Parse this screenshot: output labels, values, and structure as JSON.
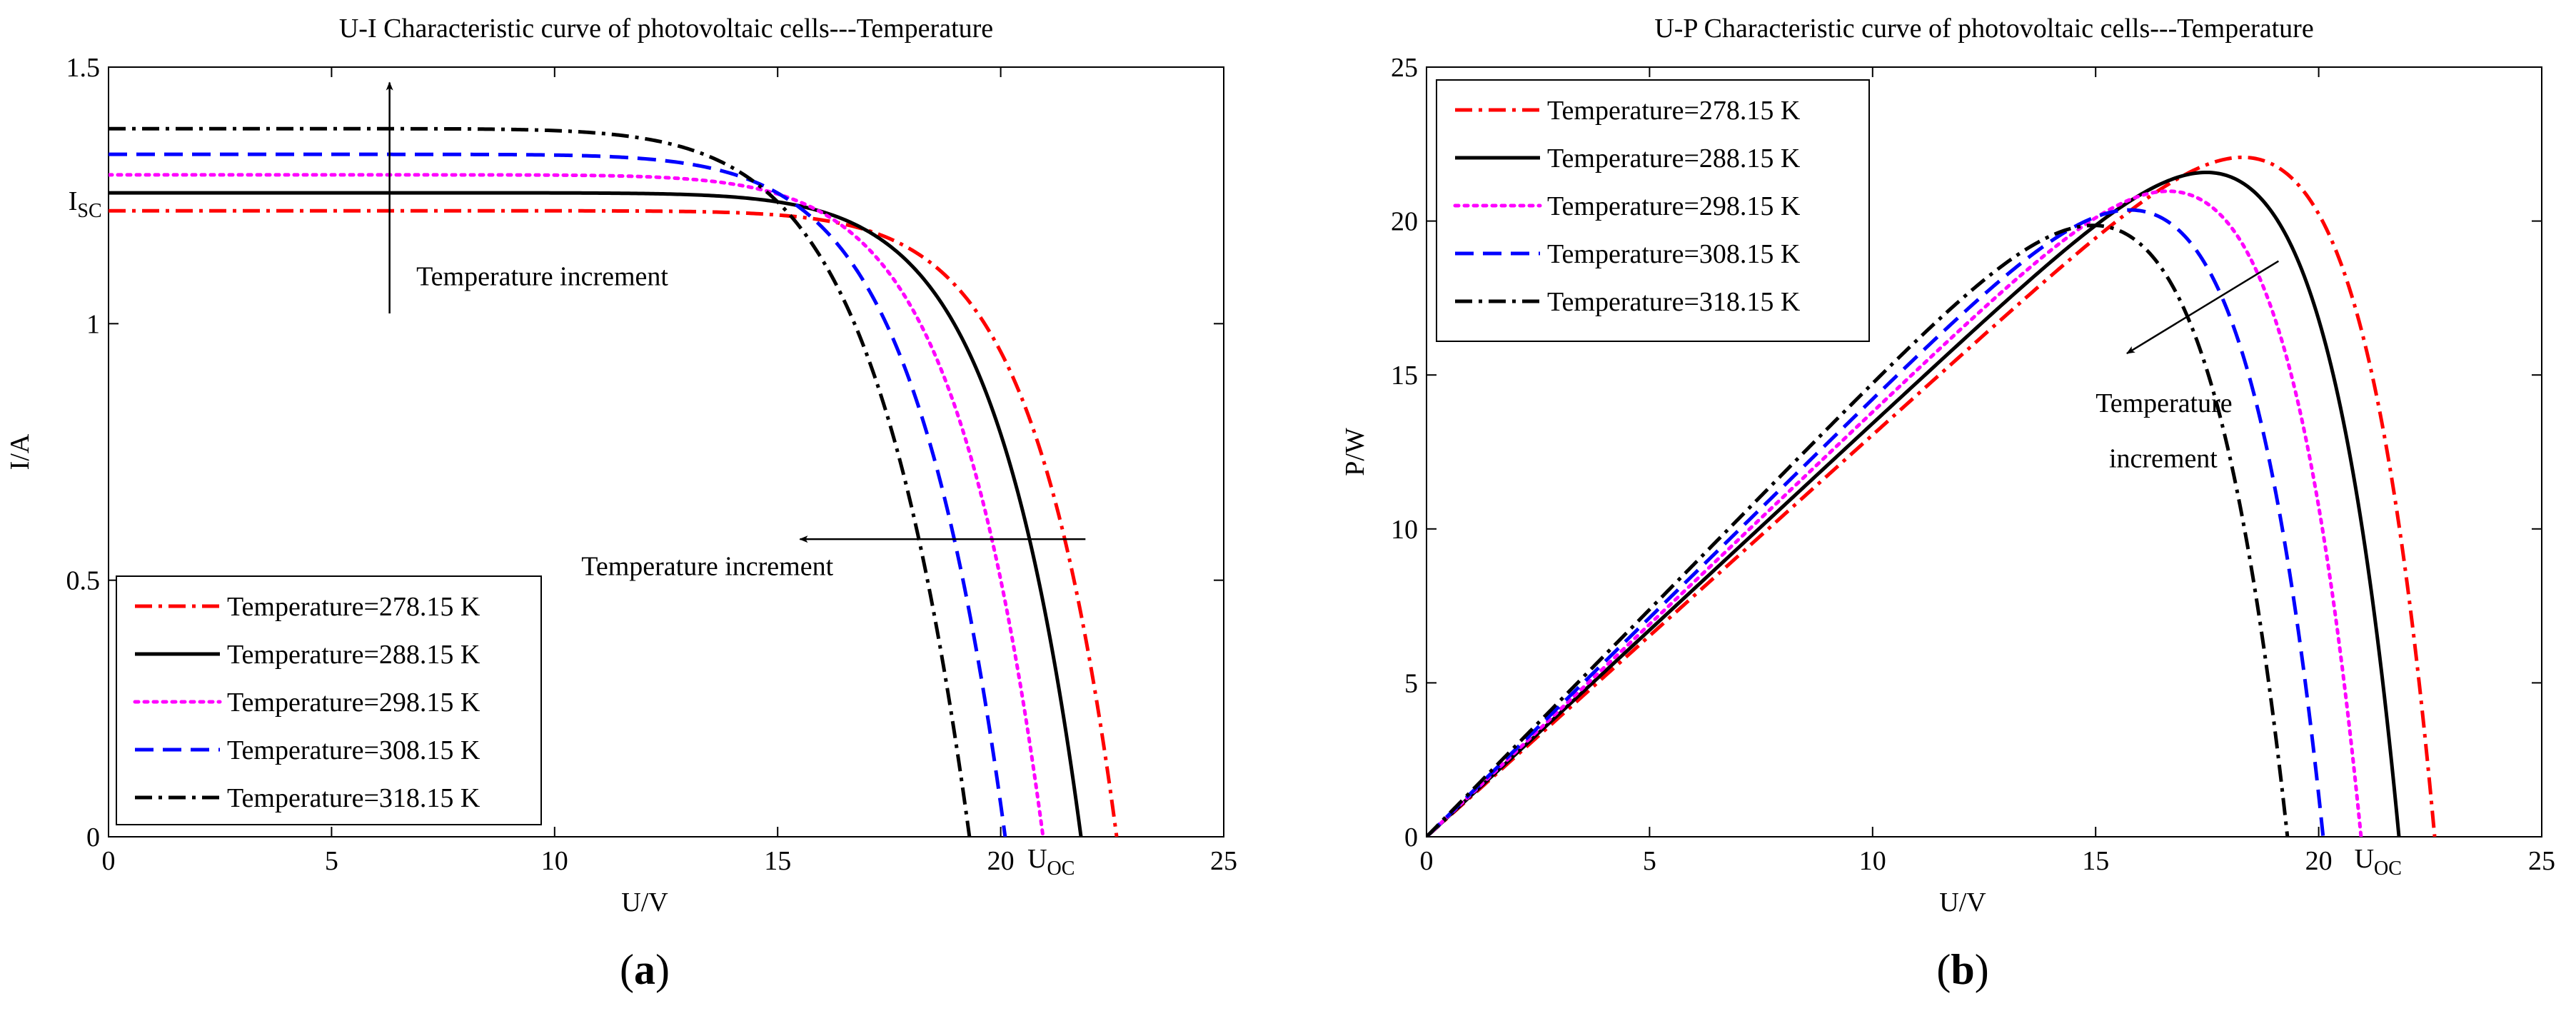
{
  "panels": [
    {
      "id": "a",
      "label": "a",
      "chart_data": {
        "type": "line",
        "title": "U-I Characteristic curve of photovoltaic cells---Temperature",
        "xlabel": "U/V",
        "ylabel": "I/A",
        "xlim": [
          0,
          25
        ],
        "ylim": [
          0,
          1.5
        ],
        "xticks": [
          0,
          5,
          10,
          15,
          20,
          25
        ],
        "yticks": [
          0,
          0.5,
          1,
          1.5
        ],
        "ytick_labels": [
          "0",
          "0.5",
          "1",
          "1.5"
        ],
        "grid": false,
        "legend_position": "bottom-left",
        "annotations": [
          {
            "kind": "text-sub",
            "text": "I",
            "sub": "SC",
            "x": -0.9,
            "y": 1.222
          },
          {
            "kind": "text-sub",
            "text": "U",
            "sub": "OC",
            "x": 20.6,
            "y": -0.06
          },
          {
            "kind": "text",
            "text": "Temperature increment",
            "x": 6.9,
            "y": 1.075
          },
          {
            "kind": "text",
            "text": "Temperature increment",
            "x": 10.6,
            "y": 0.51
          },
          {
            "kind": "arrow",
            "from": [
              6.3,
              1.02
            ],
            "to": [
              6.3,
              1.47
            ]
          },
          {
            "kind": "arrow",
            "from": [
              21.9,
              0.58
            ],
            "to": [
              15.5,
              0.58
            ]
          }
        ],
        "series": [
          {
            "name": "Temperature=278.15 K",
            "color": "#ff0000",
            "dash": "dashdot",
            "isc": 1.22,
            "voc": 22.6,
            "n": 1.42
          },
          {
            "name": "Temperature=288.15 K",
            "color": "#000000",
            "dash": "solid",
            "isc": 1.255,
            "voc": 21.8,
            "n": 1.4
          },
          {
            "name": "Temperature=298.15 K",
            "color": "#ff00ff",
            "dash": "dotted",
            "isc": 1.29,
            "voc": 20.95,
            "n": 1.38
          },
          {
            "name": "Temperature=308.15 K",
            "color": "#0000ff",
            "dash": "dashed",
            "isc": 1.33,
            "voc": 20.1,
            "n": 1.36
          },
          {
            "name": "Temperature=318.15 K",
            "color": "#000000",
            "dash": "dashdot",
            "isc": 1.38,
            "voc": 19.3,
            "n": 1.34
          }
        ]
      }
    },
    {
      "id": "b",
      "label": "b",
      "chart_data": {
        "type": "line",
        "title": "U-P Characteristic curve of photovoltaic cells---Temperature",
        "xlabel": "U/V",
        "ylabel": "P/W",
        "xlim": [
          0,
          25
        ],
        "ylim": [
          0,
          25
        ],
        "xticks": [
          0,
          5,
          10,
          15,
          20,
          25
        ],
        "yticks": [
          0,
          5,
          10,
          15,
          20,
          25
        ],
        "ytick_labels": [
          "0",
          "5",
          "10",
          "15",
          "20",
          "25"
        ],
        "grid": false,
        "legend_position": "top-left",
        "annotations": [
          {
            "kind": "text-sub",
            "text": "U",
            "sub": "OC",
            "x": 20.8,
            "y": -1.0
          },
          {
            "kind": "text",
            "text": "Temperature",
            "x": 15.0,
            "y": 13.8
          },
          {
            "kind": "text",
            "text": "increment",
            "x": 15.3,
            "y": 12.0
          },
          {
            "kind": "arrow",
            "from": [
              19.1,
              18.7
            ],
            "to": [
              15.7,
              15.7
            ]
          }
        ],
        "series": [
          {
            "name": "Temperature=278.15 K",
            "color": "#ff0000",
            "dash": "dashdot",
            "isc": 1.22,
            "voc": 22.6,
            "n": 1.42
          },
          {
            "name": "Temperature=288.15 K",
            "color": "#000000",
            "dash": "solid",
            "isc": 1.255,
            "voc": 21.8,
            "n": 1.4
          },
          {
            "name": "Temperature=298.15 K",
            "color": "#ff00ff",
            "dash": "dotted",
            "isc": 1.29,
            "voc": 20.95,
            "n": 1.38
          },
          {
            "name": "Temperature=308.15 K",
            "color": "#0000ff",
            "dash": "dashed",
            "isc": 1.33,
            "voc": 20.1,
            "n": 1.36
          },
          {
            "name": "Temperature=318.15 K",
            "color": "#000000",
            "dash": "dashdot",
            "isc": 1.38,
            "voc": 19.3,
            "n": 1.34
          }
        ]
      }
    }
  ]
}
